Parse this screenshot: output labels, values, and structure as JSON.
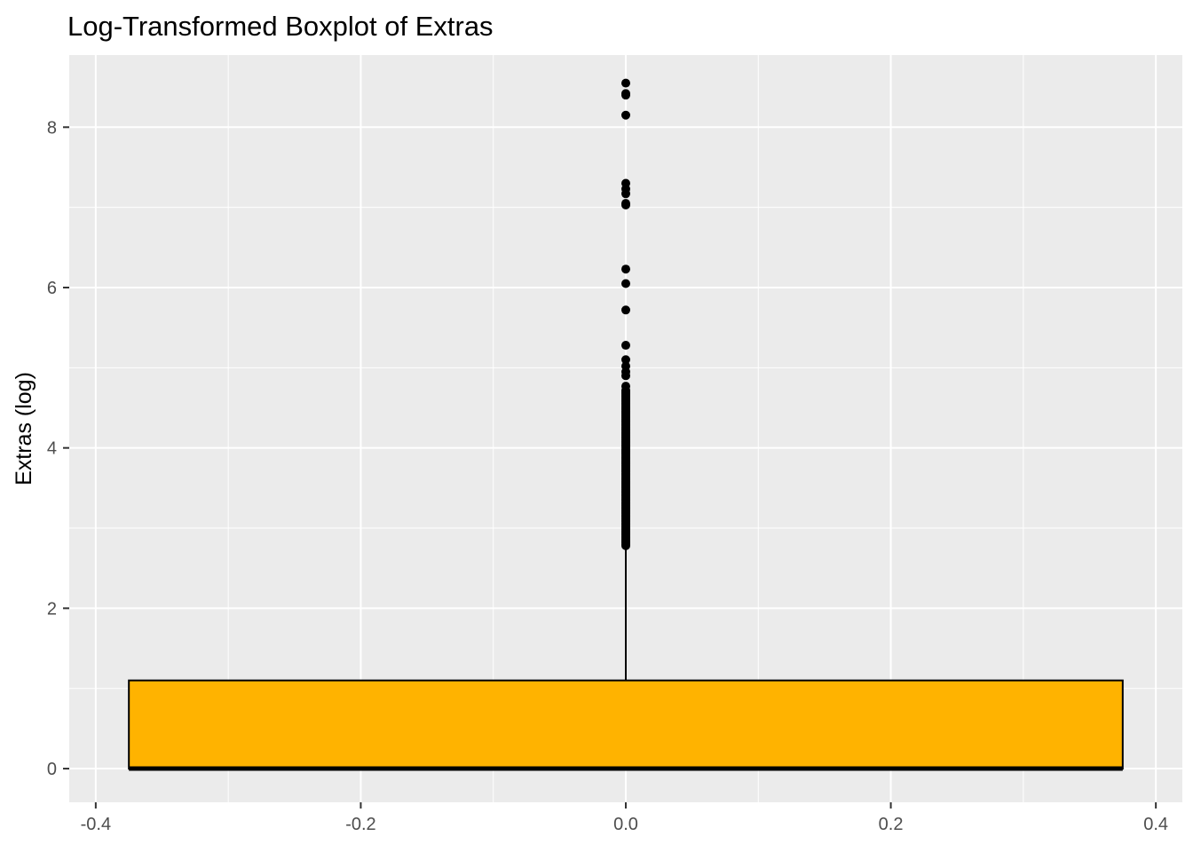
{
  "chart_data": {
    "type": "boxplot",
    "title": "Log-Transformed Boxplot of Extras",
    "xlabel": "",
    "ylabel": "Extras (log)",
    "xlim": [
      -0.42,
      0.42
    ],
    "ylim": [
      -0.42,
      8.9
    ],
    "x_ticks": [
      -0.4,
      -0.2,
      0.0,
      0.2,
      0.4
    ],
    "x_tick_labels": [
      "-0.4",
      "-0.2",
      "0.0",
      "0.2",
      "0.4"
    ],
    "y_ticks": [
      0,
      2,
      4,
      6,
      8
    ],
    "y_tick_labels": [
      "0",
      "2",
      "4",
      "6",
      "8"
    ],
    "grid": true,
    "box": {
      "x_center": 0.0,
      "x_min": -0.375,
      "x_max": 0.375,
      "q1": 0.0,
      "median": 0.0,
      "q3": 1.1,
      "whisker_low": 0.0,
      "whisker_high": 2.75,
      "fill": "#FFB300",
      "stroke": "#000000"
    },
    "outliers": {
      "x": 0.0,
      "dense_range": [
        2.78,
        4.72
      ],
      "dense_step": 0.02,
      "values": [
        4.77,
        4.9,
        4.95,
        5.02,
        5.1,
        5.28,
        5.72,
        6.05,
        6.23,
        7.03,
        7.05,
        7.17,
        7.23,
        7.3,
        8.15,
        8.4,
        8.42,
        8.55
      ],
      "color": "#000000"
    },
    "panel_background": "#EBEBEB",
    "gridline_color": "#FFFFFF"
  }
}
